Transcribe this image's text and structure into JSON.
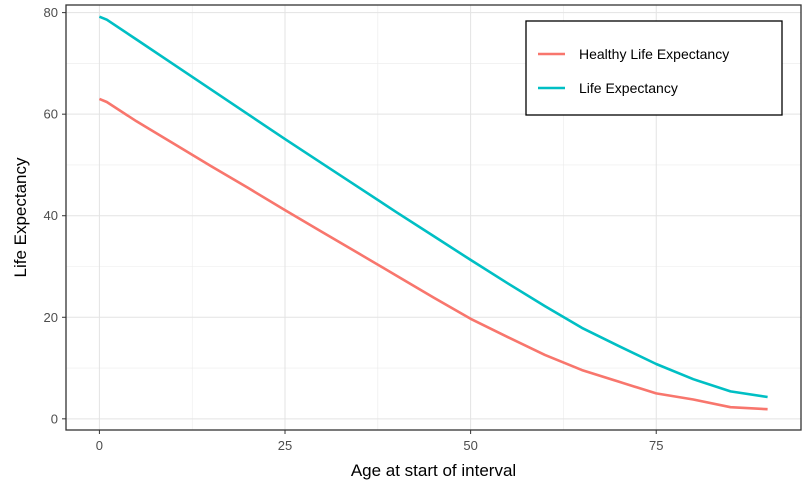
{
  "chart_data": {
    "type": "line",
    "title": "",
    "xlabel": "Age at start of interval",
    "ylabel": "Life Expectancy",
    "xlim": [
      -4.5,
      94.5
    ],
    "ylim": [
      -2.2,
      81.5
    ],
    "x_ticks": [
      0,
      25,
      50,
      75
    ],
    "y_ticks": [
      0,
      20,
      40,
      60,
      80
    ],
    "grid": true,
    "legend_position": "top-right",
    "series": [
      {
        "name": "Healthy Life Expectancy",
        "color": "#F8766D",
        "x": [
          0,
          1,
          5,
          10,
          15,
          20,
          25,
          30,
          35,
          40,
          45,
          50,
          55,
          60,
          65,
          70,
          75,
          80,
          85,
          90
        ],
        "y": [
          63,
          62.4,
          58.6,
          54.2,
          49.8,
          45.5,
          41.1,
          36.8,
          32.5,
          28.2,
          23.9,
          19.7,
          16.1,
          12.6,
          9.6,
          7.3,
          5.0,
          3.8,
          2.3,
          1.9
        ]
      },
      {
        "name": "Life Expectancy",
        "color": "#00BFC4",
        "x": [
          0,
          1,
          5,
          10,
          15,
          20,
          25,
          30,
          35,
          40,
          45,
          50,
          55,
          60,
          65,
          70,
          75,
          80,
          85,
          90
        ],
        "y": [
          79.2,
          78.6,
          74.7,
          69.8,
          64.9,
          60.0,
          55.1,
          50.3,
          45.5,
          40.7,
          36.0,
          31.3,
          26.7,
          22.2,
          17.9,
          14.3,
          10.8,
          7.8,
          5.4,
          4.3
        ]
      }
    ]
  }
}
